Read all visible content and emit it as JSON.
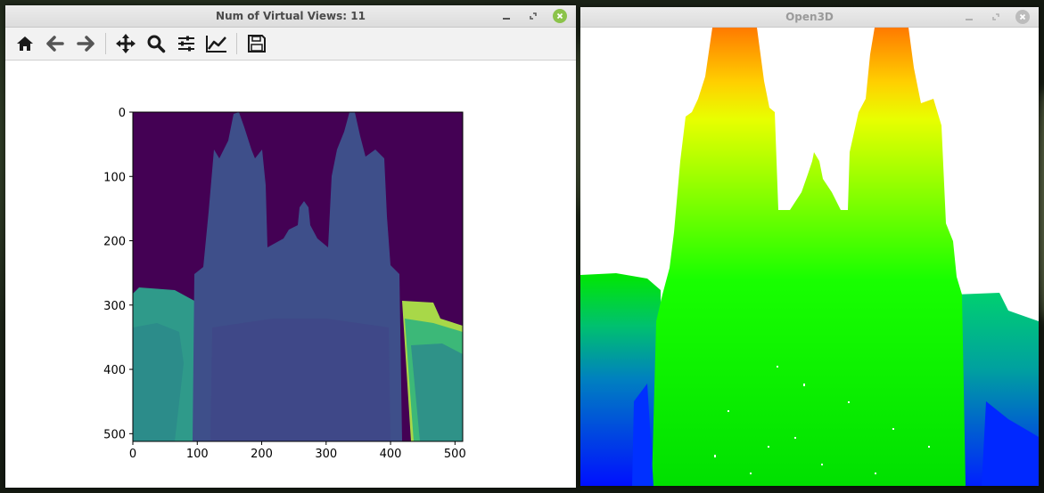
{
  "matplotlib_window": {
    "title": "Num of Virtual Views: 11",
    "toolbar": {
      "buttons": [
        {
          "name": "home-icon",
          "label": "Home"
        },
        {
          "name": "back-icon",
          "label": "Back"
        },
        {
          "name": "forward-icon",
          "label": "Forward"
        },
        {
          "name": "pan-icon",
          "label": "Pan"
        },
        {
          "name": "zoom-icon",
          "label": "Zoom"
        },
        {
          "name": "configure-subplots-icon",
          "label": "Configure subplots"
        },
        {
          "name": "edit-axis-icon",
          "label": "Edit axis"
        },
        {
          "name": "save-icon",
          "label": "Save"
        }
      ]
    },
    "plot": {
      "type": "image",
      "x_ticks": [
        "0",
        "100",
        "200",
        "300",
        "400",
        "500"
      ],
      "y_ticks": [
        "0",
        "100",
        "200",
        "300",
        "400",
        "500"
      ],
      "x_range": [
        0,
        512
      ],
      "y_range": [
        0,
        512
      ],
      "colormap": "viridis"
    }
  },
  "open3d_window": {
    "title": "Open3D",
    "colormap": "jet"
  },
  "colors": {
    "viridis_bg": "#440154",
    "viridis_main": "#3e4f8a",
    "viridis_left": "#2f9a8a",
    "viridis_right": "#a8d848",
    "green": "#00ff00",
    "blue": "#0018ff",
    "orange": "#ff8000"
  }
}
